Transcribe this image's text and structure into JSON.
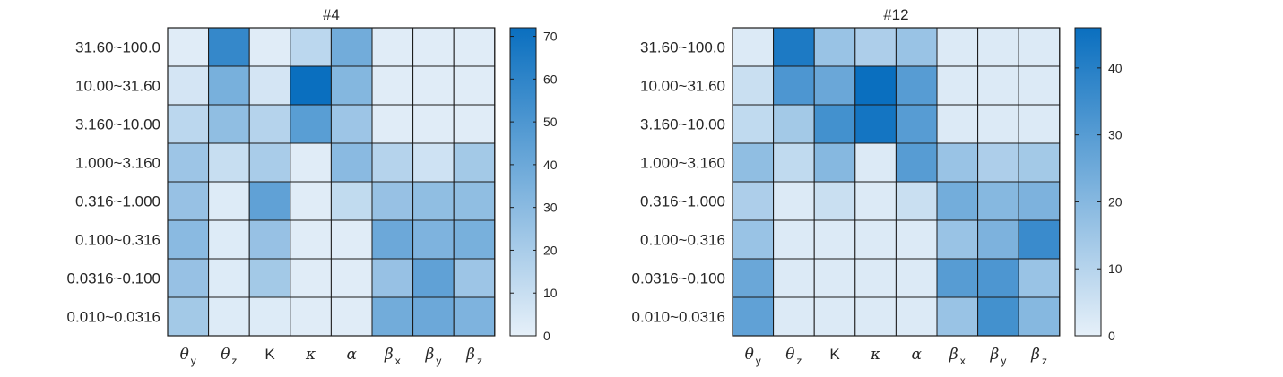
{
  "chart_data": [
    {
      "type": "heatmap",
      "title": "#4",
      "rows": [
        "31.60~100.0",
        "10.00~31.60",
        "3.160~10.00",
        "1.000~3.160",
        "0.316~1.000",
        "0.100~0.316",
        "0.0316~0.100",
        "0.010~0.0316"
      ],
      "columns": [
        {
          "symbol": "θ",
          "sub": "y"
        },
        {
          "symbol": "θ",
          "sub": "z"
        },
        {
          "symbol": "K",
          "sub": ""
        },
        {
          "symbol": "κ",
          "sub": ""
        },
        {
          "symbol": "α",
          "sub": ""
        },
        {
          "symbol": "β",
          "sub": "x"
        },
        {
          "symbol": "β",
          "sub": "y"
        },
        {
          "symbol": "β",
          "sub": "z"
        }
      ],
      "values": [
        [
          2,
          58,
          2,
          14,
          38,
          2,
          2,
          2
        ],
        [
          6,
          36,
          6,
          72,
          32,
          2,
          2,
          2
        ],
        [
          14,
          28,
          16,
          46,
          24,
          2,
          2,
          2
        ],
        [
          24,
          10,
          20,
          2,
          30,
          16,
          8,
          22
        ],
        [
          26,
          3,
          44,
          2,
          12,
          26,
          28,
          28
        ],
        [
          30,
          3,
          26,
          2,
          2,
          40,
          34,
          36
        ],
        [
          26,
          3,
          22,
          2,
          2,
          26,
          44,
          24
        ],
        [
          22,
          3,
          3,
          2,
          2,
          38,
          40,
          34
        ]
      ],
      "colorbar": {
        "min": 0,
        "max": 72,
        "ticks": [
          0,
          10,
          20,
          30,
          40,
          50,
          60,
          70
        ]
      }
    },
    {
      "type": "heatmap",
      "title": "#12",
      "rows": [
        "31.60~100.0",
        "10.00~31.60",
        "3.160~10.00",
        "1.000~3.160",
        "0.316~1.000",
        "0.100~0.316",
        "0.0316~0.100",
        "0.010~0.0316"
      ],
      "columns": [
        {
          "symbol": "θ",
          "sub": "y"
        },
        {
          "symbol": "θ",
          "sub": "z"
        },
        {
          "symbol": "K",
          "sub": ""
        },
        {
          "symbol": "κ",
          "sub": ""
        },
        {
          "symbol": "α",
          "sub": ""
        },
        {
          "symbol": "β",
          "sub": "x"
        },
        {
          "symbol": "β",
          "sub": "y"
        },
        {
          "symbol": "β",
          "sub": "z"
        }
      ],
      "values": [
        [
          2,
          42,
          16,
          12,
          16,
          2,
          2,
          2
        ],
        [
          6,
          32,
          26,
          46,
          30,
          2,
          2,
          2
        ],
        [
          8,
          14,
          34,
          44,
          30,
          2,
          2,
          2
        ],
        [
          18,
          8,
          20,
          2,
          30,
          16,
          12,
          14
        ],
        [
          12,
          2,
          6,
          2,
          6,
          24,
          20,
          22
        ],
        [
          16,
          2,
          2,
          2,
          2,
          16,
          22,
          36
        ],
        [
          26,
          2,
          2,
          2,
          2,
          30,
          32,
          16
        ],
        [
          28,
          2,
          2,
          2,
          2,
          16,
          34,
          20
        ]
      ],
      "colorbar": {
        "min": 0,
        "max": 46,
        "ticks": [
          0,
          10,
          20,
          30,
          40
        ]
      }
    }
  ],
  "colors": {
    "low": "#e6f0f9",
    "high": "#0a6fbf",
    "grid": "#1a1a1a",
    "text": "#262626"
  }
}
